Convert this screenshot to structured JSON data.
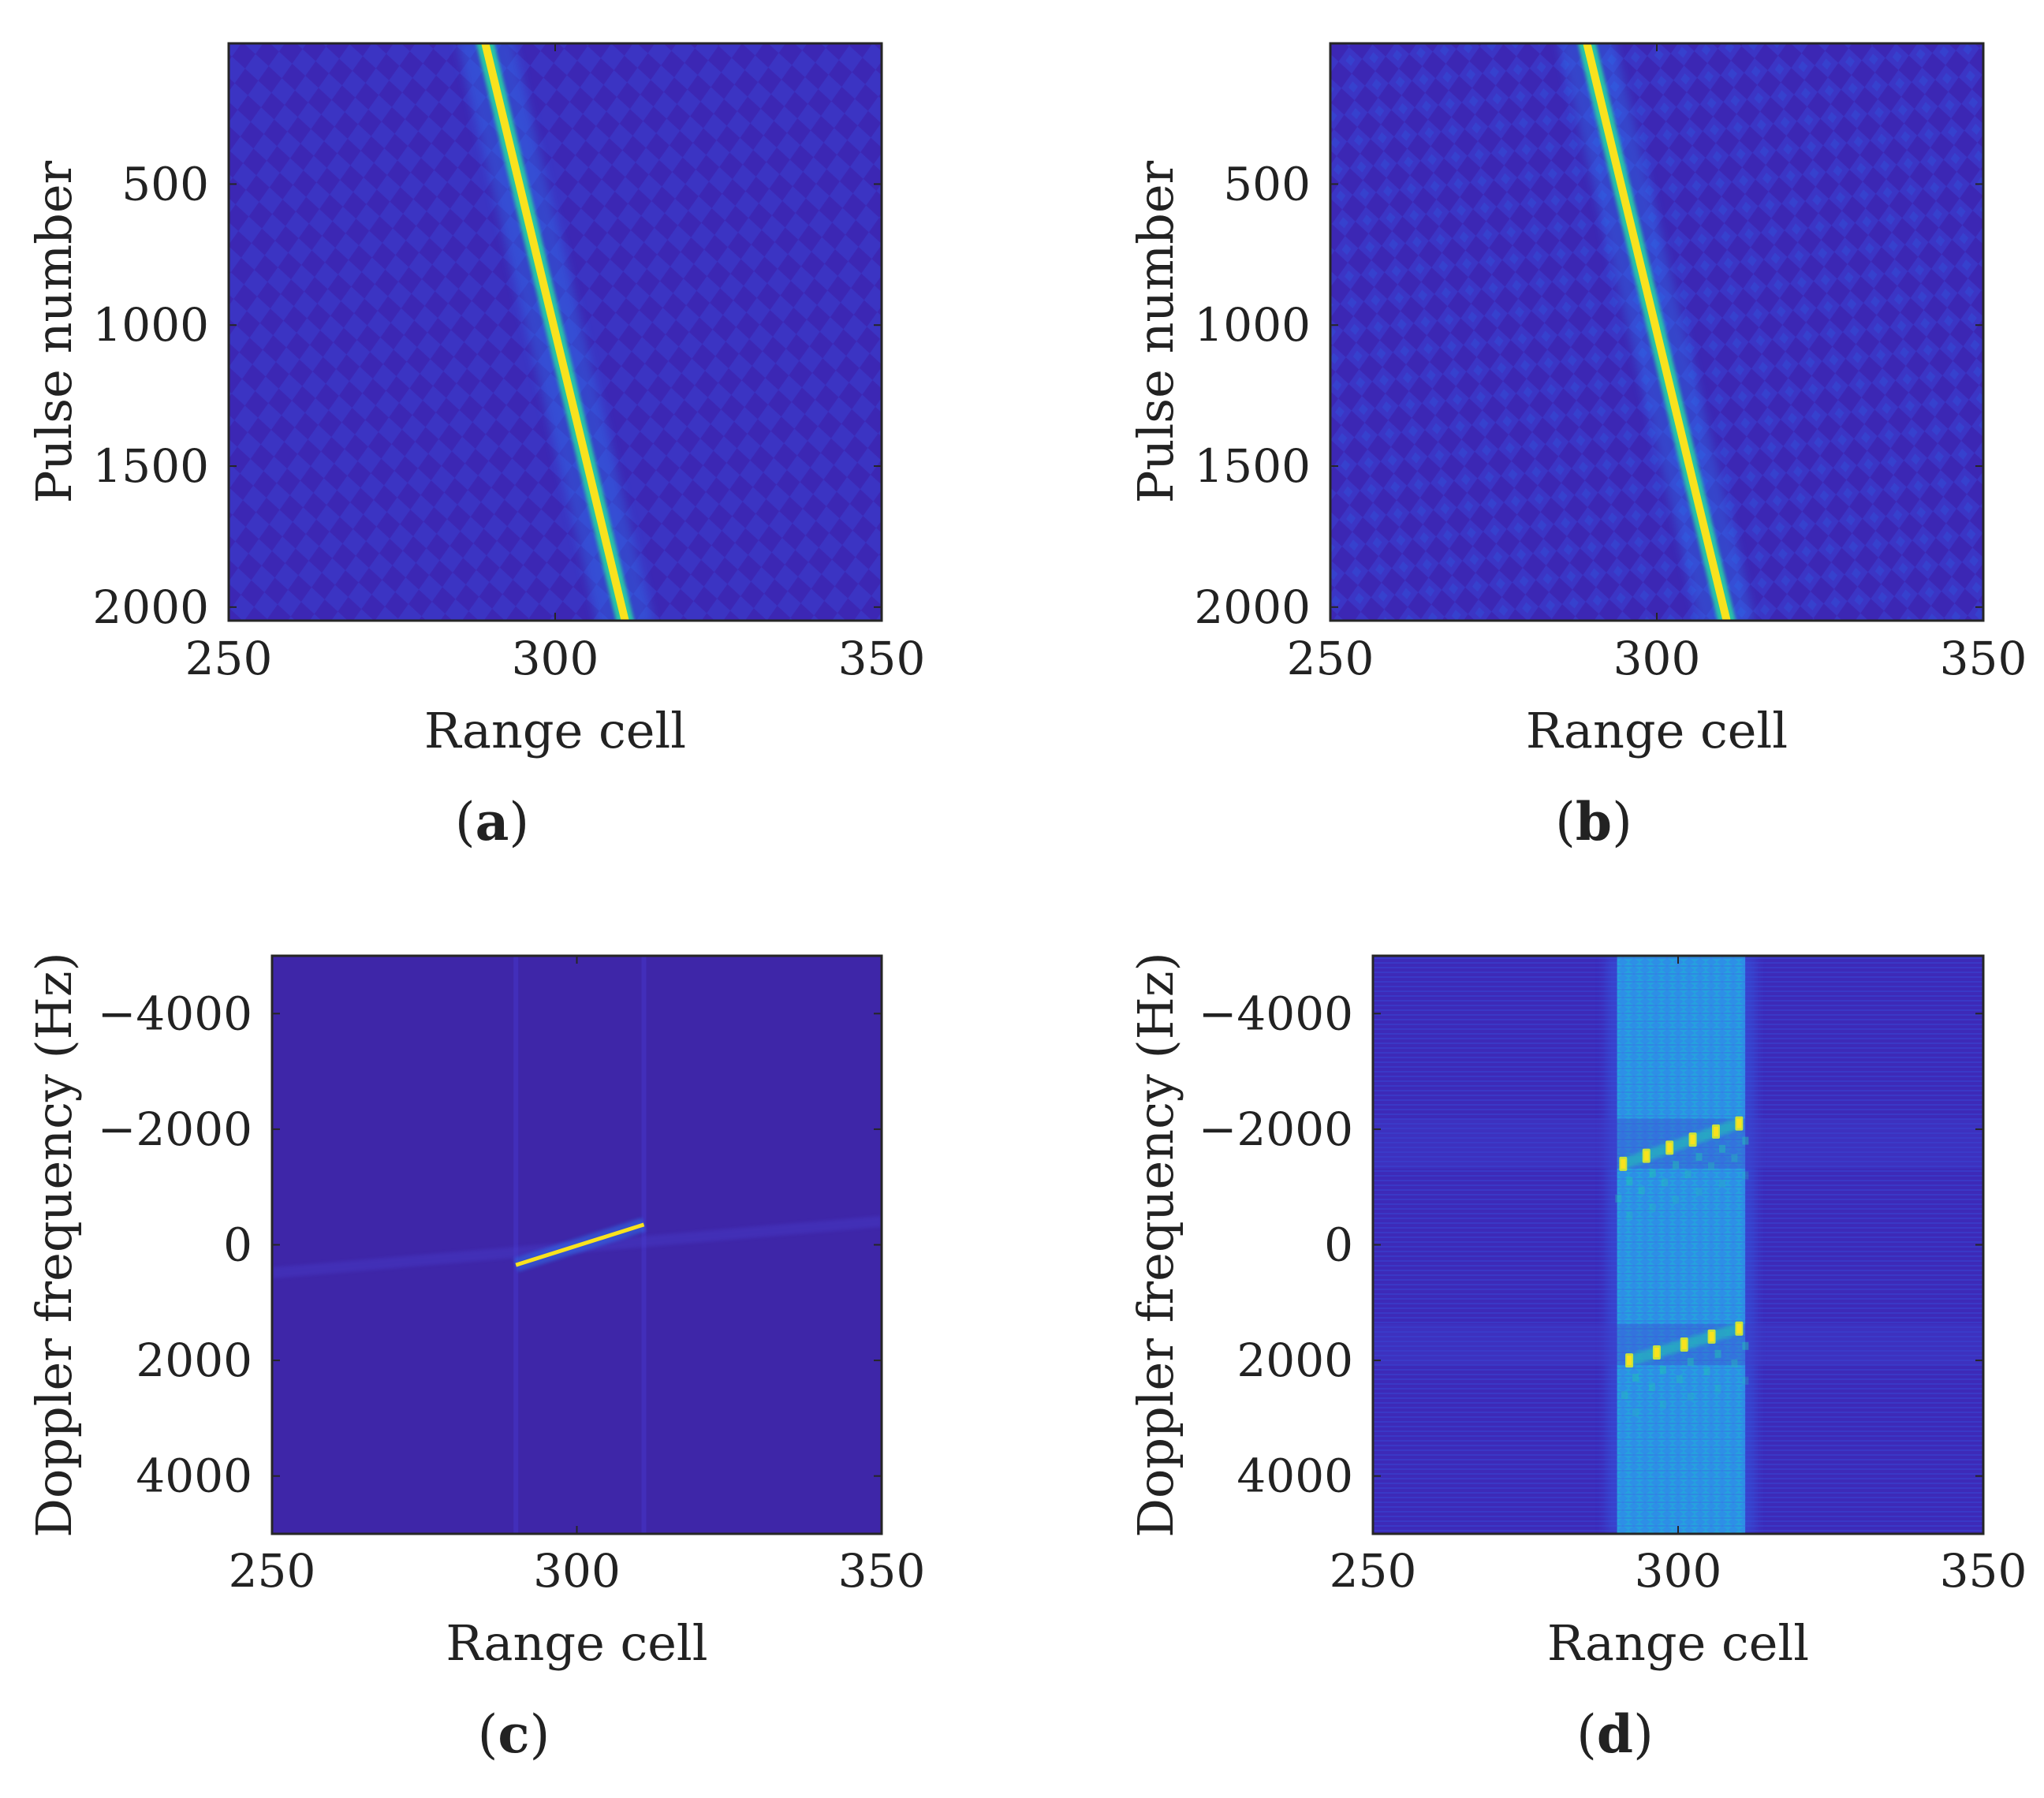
{
  "figure": {
    "colors": {
      "background_map": "#3e26a8",
      "track": "#f9e21e",
      "track_mid": "#27d3a0",
      "halo": "#2a7ef5",
      "axis": "#262626"
    }
  },
  "chart_data": [
    {
      "id": "a",
      "type": "heatmap",
      "panel_label": "a",
      "xlabel": "Range cell",
      "ylabel": "Pulse number",
      "xlim": [
        250,
        350
      ],
      "ylim": [
        1,
        2048
      ],
      "y_reversed": true,
      "xticks": [
        250,
        300,
        350
      ],
      "yticks": [
        500,
        1000,
        1500,
        2000
      ],
      "track": {
        "from": [
          289,
          1
        ],
        "to": [
          311,
          2048
        ]
      },
      "pattern": "diamond-sidelobes"
    },
    {
      "id": "b",
      "type": "heatmap",
      "panel_label": "b",
      "xlabel": "Range cell",
      "ylabel": "Pulse number",
      "xlim": [
        250,
        350
      ],
      "ylim": [
        1,
        2048
      ],
      "y_reversed": true,
      "xticks": [
        250,
        300,
        350
      ],
      "yticks": [
        500,
        1000,
        1500,
        2000
      ],
      "track": {
        "from": [
          289,
          1
        ],
        "to": [
          311,
          2048
        ]
      },
      "pattern": "diamond-sidelobes"
    },
    {
      "id": "c",
      "type": "heatmap",
      "panel_label": "c",
      "xlabel": "Range cell",
      "ylabel": "Doppler frequency (Hz)",
      "xlim": [
        250,
        350
      ],
      "ylim": [
        -5000,
        5000
      ],
      "y_reversed": true,
      "xticks": [
        250,
        300,
        350
      ],
      "yticks": [
        -4000,
        -2000,
        0,
        2000,
        4000
      ],
      "track": {
        "from": [
          290,
          350
        ],
        "to": [
          311,
          -350
        ]
      },
      "pattern": "focused-line"
    },
    {
      "id": "d",
      "type": "heatmap",
      "panel_label": "d",
      "xlabel": "Range cell",
      "ylabel": "Doppler frequency (Hz)",
      "xlim": [
        250,
        350
      ],
      "ylim": [
        -5000,
        5000
      ],
      "y_reversed": true,
      "xticks": [
        250,
        300,
        350
      ],
      "yticks": [
        -4000,
        -2000,
        0,
        2000,
        4000
      ],
      "band": [
        290,
        311
      ],
      "peak_rows": [
        {
          "from": [
            291,
            -1400
          ],
          "to": [
            310,
            -2100
          ],
          "count": 6
        },
        {
          "from": [
            292,
            2000
          ],
          "to": [
            310,
            1450
          ],
          "count": 5
        }
      ],
      "pattern": "smeared-band"
    }
  ]
}
